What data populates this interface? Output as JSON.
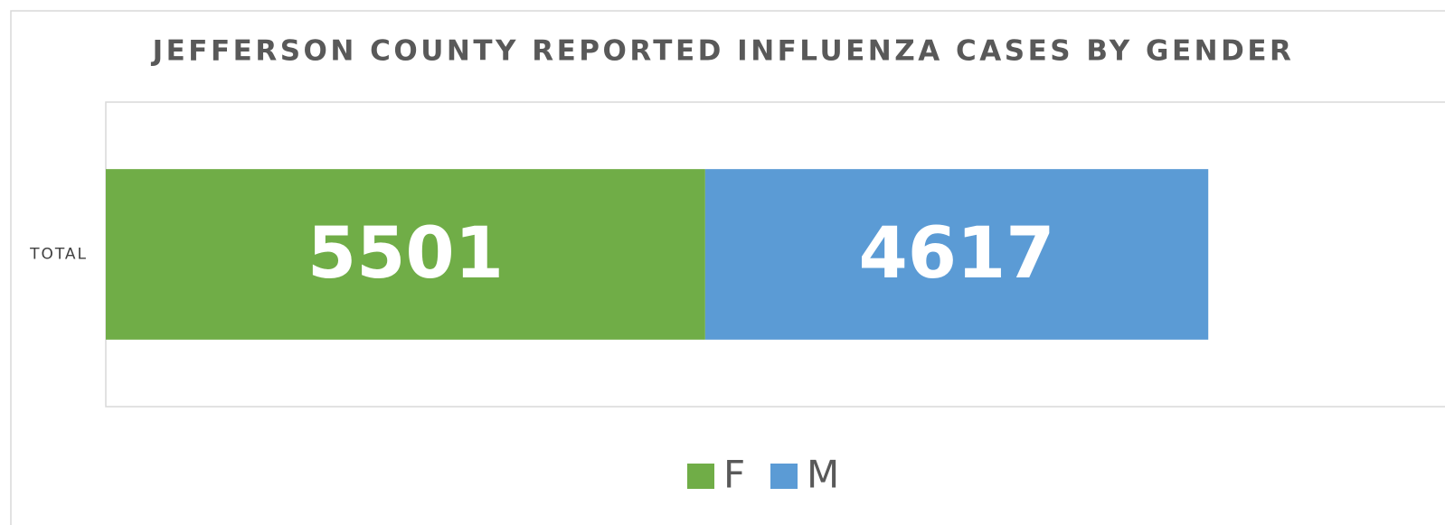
{
  "chart_data": {
    "type": "stacked-bar-horizontal",
    "title": "JEFFERSON COUNTY REPORTED INFLUENZA CASES BY GENDER",
    "categories": [
      "TOTAL"
    ],
    "series": [
      {
        "name": "F",
        "color": "#70ad47",
        "values": [
          5501
        ]
      },
      {
        "name": "M",
        "color": "#5b9bd5",
        "values": [
          4617
        ]
      }
    ],
    "xlim": [
      0,
      12000
    ],
    "legend": "bottom"
  }
}
